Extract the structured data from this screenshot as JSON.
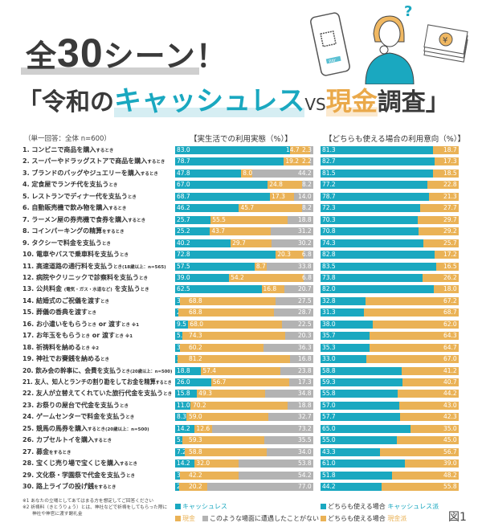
{
  "title": {
    "line1_pre": "全",
    "line1_num": "30",
    "line1_post": "シーン！",
    "line2_open": "「令和の",
    "line2_cashless": "キャッシュレス",
    "line2_vs": "VS",
    "line2_cash": "現金",
    "line2_close": "調査」"
  },
  "illustration": {
    "phone_button": "PAY",
    "icons": [
      "smartphone-qr-icon",
      "thinking-woman-icon",
      "yen-bills-icon",
      "question-mark-icon"
    ]
  },
  "sample_note": "（単一回答：全体 n=600）",
  "colors": {
    "cashless": "#1aa8c0",
    "cash": "#eab256",
    "never": "#b3b3b3"
  },
  "chart_data": [
    {
      "type": "bar",
      "orientation": "horizontal-stacked-100",
      "title": "【実生活での利用実態（%）】",
      "categories_ref": "labels",
      "series": [
        {
          "name": "キャッシュレス",
          "values": [
            83.0,
            78.7,
            47.8,
            67.0,
            68.7,
            46.2,
            25.7,
            25.2,
            40.2,
            72.8,
            57.5,
            39.0,
            62.5,
            3.7,
            2.5,
            9.5,
            5.3,
            3.5,
            2.0,
            18.8,
            26.0,
            15.8,
            11.0,
            8.3,
            14.2,
            5.2,
            7.2,
            14.2,
            3.7,
            2.8
          ]
        },
        {
          "name": "現金",
          "values": [
            14.7,
            19.2,
            8.0,
            24.8,
            17.3,
            45.7,
            55.5,
            43.7,
            29.7,
            20.3,
            8.7,
            54.2,
            16.8,
            68.8,
            68.8,
            68.0,
            74.3,
            60.2,
            81.2,
            57.4,
            56.7,
            49.3,
            70.2,
            59.0,
            12.6,
            59.3,
            58.8,
            32.0,
            42.2,
            20.2
          ]
        },
        {
          "name": "このような場面に遭遇したことがない",
          "values": [
            2.3,
            2.2,
            44.2,
            8.2,
            14.0,
            8.2,
            18.8,
            31.2,
            30.2,
            6.8,
            33.8,
            6.8,
            20.7,
            27.5,
            28.7,
            22.5,
            20.3,
            36.3,
            16.8,
            23.8,
            17.3,
            34.8,
            18.8,
            32.7,
            73.2,
            35.5,
            34.0,
            53.8,
            54.2,
            77.0
          ]
        }
      ],
      "xlim": [
        0,
        100
      ]
    },
    {
      "type": "bar",
      "orientation": "horizontal-stacked-100",
      "title": "【どちらも使える場合の利用意向（%）】",
      "series": [
        {
          "name": "どちらも使える場合 キャッシュレス派",
          "values": [
            81.3,
            82.7,
            81.5,
            77.2,
            78.7,
            72.3,
            70.3,
            70.8,
            74.3,
            82.8,
            83.5,
            73.8,
            82.0,
            32.8,
            31.3,
            38.0,
            35.7,
            35.3,
            33.0,
            58.8,
            59.3,
            55.8,
            57.0,
            57.7,
            65.0,
            55.0,
            43.3,
            61.0,
            51.8,
            44.2
          ]
        },
        {
          "name": "どちらも使える場合 現金派",
          "values": [
            18.7,
            17.3,
            18.5,
            22.8,
            21.3,
            27.7,
            29.7,
            29.2,
            25.7,
            17.2,
            16.5,
            26.2,
            18.0,
            67.2,
            68.7,
            62.0,
            64.3,
            64.7,
            67.0,
            41.2,
            40.7,
            44.2,
            43.0,
            42.3,
            35.0,
            45.0,
            56.7,
            39.0,
            48.2,
            55.8
          ]
        }
      ],
      "xlim": [
        0,
        100
      ]
    }
  ],
  "labels": [
    [
      [
        "1. コンビニで商品を購入",
        0
      ],
      [
        "するとき",
        1
      ]
    ],
    [
      [
        "2. スーパーやドラッグストアで商品を購入",
        0
      ],
      [
        "するとき",
        1
      ]
    ],
    [
      [
        "3. ブランドのバッグやジュエリーを購入",
        0
      ],
      [
        "するとき",
        1
      ]
    ],
    [
      [
        "4. 定食屋でランチ代を支払う",
        0
      ],
      [
        "とき",
        1
      ]
    ],
    [
      [
        "5. レストランでディナー代を支払う",
        0
      ],
      [
        "とき",
        1
      ]
    ],
    [
      [
        "6. 自動販売機で飲み物を購入",
        0
      ],
      [
        "するとき",
        1
      ]
    ],
    [
      [
        "7. ラーメン屋の券売機で食券を購入",
        0
      ],
      [
        "するとき",
        1
      ]
    ],
    [
      [
        "8. コインパーキングの精算",
        0
      ],
      [
        "をするとき",
        1
      ]
    ],
    [
      [
        "9. タクシーで料金を支払う",
        0
      ],
      [
        "とき",
        1
      ]
    ],
    [
      [
        "10. 電車やバスで乗車料を支払う",
        0
      ],
      [
        "とき",
        1
      ]
    ],
    [
      [
        "11. 高速道路の通行料を支払う",
        0
      ],
      [
        "とき(18歳以上：n=565)",
        1
      ]
    ],
    [
      [
        "12. 病院やクリニックで診察料を支払う",
        0
      ],
      [
        "とき",
        1
      ]
    ],
    [
      [
        "13. 公共料金 ",
        0
      ],
      [
        "(電気・ガス・水道など)",
        1
      ],
      [
        " を支払う",
        0
      ],
      [
        "とき",
        1
      ]
    ],
    [
      [
        "14. 結婚式のご祝儀を渡す",
        0
      ],
      [
        "とき",
        1
      ]
    ],
    [
      [
        "15. 葬儀の香典を渡す",
        0
      ],
      [
        "とき",
        1
      ]
    ],
    [
      [
        "16. お小遣いをもらう",
        0
      ],
      [
        "とき",
        1
      ],
      [
        " or 渡す",
        0
      ],
      [
        "とき ※1",
        1
      ]
    ],
    [
      [
        "17. お年玉をもらう",
        0
      ],
      [
        "とき",
        1
      ],
      [
        " or 渡す",
        0
      ],
      [
        "とき ※1",
        1
      ]
    ],
    [
      [
        "18. 祈祷料を納める",
        0
      ],
      [
        "とき ※2",
        1
      ]
    ],
    [
      [
        "19. 神社でお賽銭を納める",
        0
      ],
      [
        "とき",
        1
      ]
    ],
    [
      [
        "20. 飲み会の幹事に、会費を支払う",
        0
      ],
      [
        "とき(20歳以上：n=500)",
        1
      ]
    ],
    [
      [
        "21. 友人、知人とランチの割り勘をしてお金を精算",
        0
      ],
      [
        "するとき",
        1
      ]
    ],
    [
      [
        "22. 友人が立替えてくれていた旅行代金を支払う",
        0
      ],
      [
        "とき",
        1
      ]
    ],
    [
      [
        "23. お祭りの屋台で代金を支払う",
        0
      ],
      [
        "とき",
        1
      ]
    ],
    [
      [
        "24. ゲームセンターで料金を支払う",
        0
      ],
      [
        "とき",
        1
      ]
    ],
    [
      [
        "25. 競馬の馬券を購入",
        0
      ],
      [
        "するとき(20歳以上：n=500)",
        1
      ]
    ],
    [
      [
        "26. カプセルトイを購入",
        0
      ],
      [
        "するとき",
        1
      ]
    ],
    [
      [
        "27. 募金",
        0
      ],
      [
        "をするとき",
        1
      ]
    ],
    [
      [
        "28. 宝くじ売り場で宝くじを購入",
        0
      ],
      [
        "するとき",
        1
      ]
    ],
    [
      [
        "29. 文化祭・学園祭で代金を支払う",
        0
      ],
      [
        "とき",
        1
      ]
    ],
    [
      [
        "30. 路上ライブの投げ銭",
        0
      ],
      [
        "をするとき",
        1
      ]
    ]
  ],
  "footnotes": [
    "※1 あなたの立場としてあてはまる方を想定してご回答ください",
    "※2 祈祷料（きとうりょう）とは、神社などで祈祷をしてもらった際に",
    "神社や神官に渡す謝礼金"
  ],
  "legend_left": {
    "cashless": "キャッシュレス",
    "cash": "現金",
    "never": "このような場面に遭遇したことがない"
  },
  "legend_right": {
    "cashless_pre": "どちらも使える場合 ",
    "cashless": "キャッシュレス派",
    "cash_pre": "どちらも使える場合 ",
    "cash": "現金派"
  },
  "figure_label": "図1"
}
